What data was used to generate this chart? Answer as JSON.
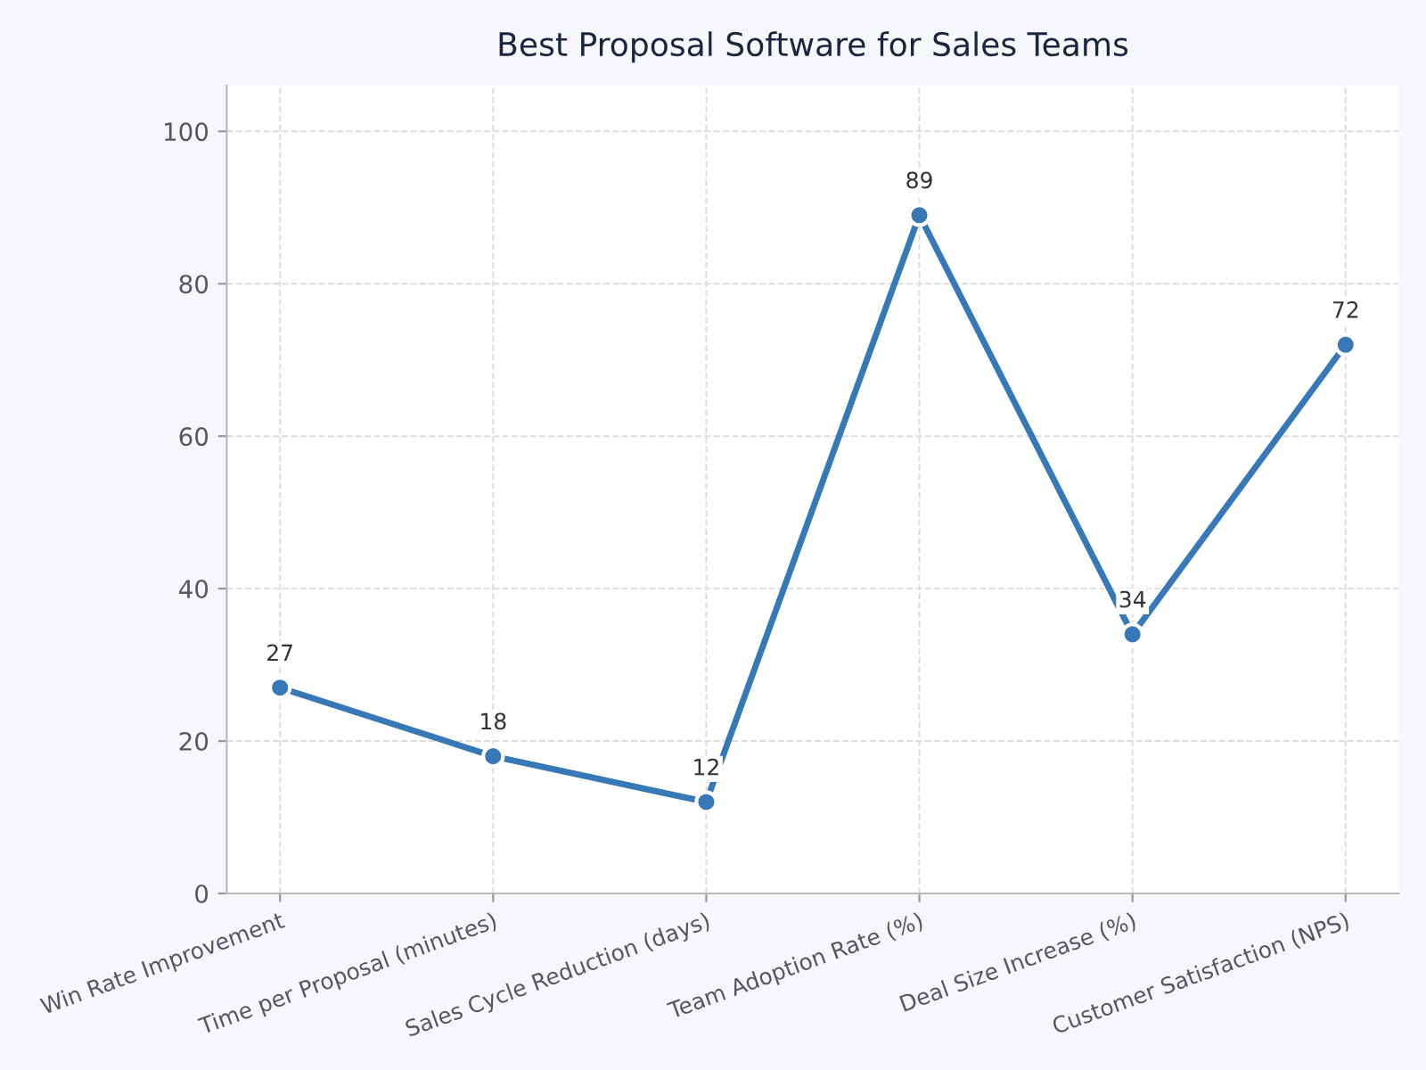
{
  "chart_data": {
    "type": "line",
    "title": "Best Proposal Software for Sales Teams",
    "categories": [
      "Win Rate Improvement",
      "Time per Proposal (minutes)",
      "Sales Cycle Reduction (days)",
      "Team Adoption Rate (%)",
      "Deal Size Increase (%)",
      "Customer Satisfaction (NPS)"
    ],
    "series": [
      {
        "color": "#3778b7",
        "values": [
          27,
          18,
          12,
          89,
          34,
          72
        ]
      }
    ],
    "ylim": [
      0,
      106
    ],
    "yticks": [
      0,
      20,
      40,
      60,
      80,
      100
    ],
    "grid": true,
    "marker": "circle",
    "line_style": "solid",
    "data_labels": true
  }
}
